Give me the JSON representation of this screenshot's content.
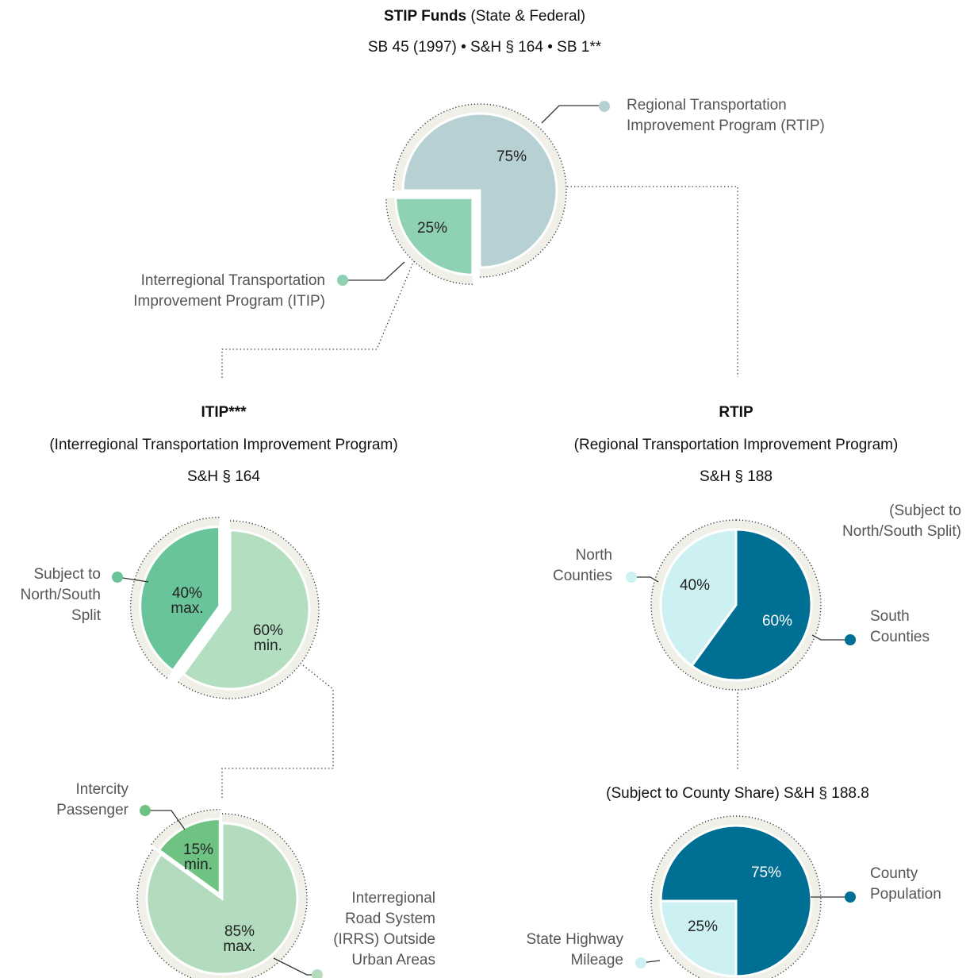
{
  "chart_data": [
    {
      "type": "pie",
      "title": "STIP Funds",
      "title_note": "(State & Federal)",
      "subtitle": "SB 45 (1997) • S&H § 164 • SB 1**",
      "categories": [
        "Regional Transportation Improvement Program (RTIP)",
        "Interregional Transportation Improvement Program (ITIP)"
      ],
      "values": [
        75,
        25
      ],
      "value_labels": [
        "75%",
        "25%"
      ],
      "colors": [
        "#b6d0d3",
        "#8fd1b3"
      ]
    },
    {
      "type": "pie",
      "title": "ITIP***",
      "subtitle": "(Interregional Transportation Improvement Program)",
      "note": "S&H § 164",
      "categories": [
        "Subject to North/South Split",
        null
      ],
      "values": [
        40,
        60
      ],
      "value_labels": [
        "40% max.",
        "60% min."
      ],
      "colors": [
        "#69c49a",
        "#b3dec0"
      ]
    },
    {
      "type": "pie",
      "title": "RTIP",
      "subtitle": "(Regional Transportation Improvement Program)",
      "note": "S&H § 188",
      "annotation": "(Subject to North/South Split)",
      "categories": [
        "North Counties",
        "South Counties"
      ],
      "values": [
        40,
        60
      ],
      "value_labels": [
        "40%",
        "60%"
      ],
      "colors": [
        "#cdf0f3",
        "#006f94"
      ]
    },
    {
      "type": "pie",
      "categories": [
        "Intercity Passenger",
        "Interregional Road System (IRRS) Outside Urban Areas"
      ],
      "values": [
        15,
        85
      ],
      "value_labels": [
        "15% min.",
        "85% max."
      ],
      "colors": [
        "#6ec382",
        "#b2dcbd"
      ]
    },
    {
      "type": "pie",
      "title": "(Subject to County Share) S&H § 188.8",
      "categories": [
        "County Population",
        "State Highway Mileage"
      ],
      "values": [
        75,
        25
      ],
      "value_labels": [
        "75%",
        "25%"
      ],
      "colors": [
        "#006f94",
        "#cdf0f3"
      ]
    }
  ]
}
